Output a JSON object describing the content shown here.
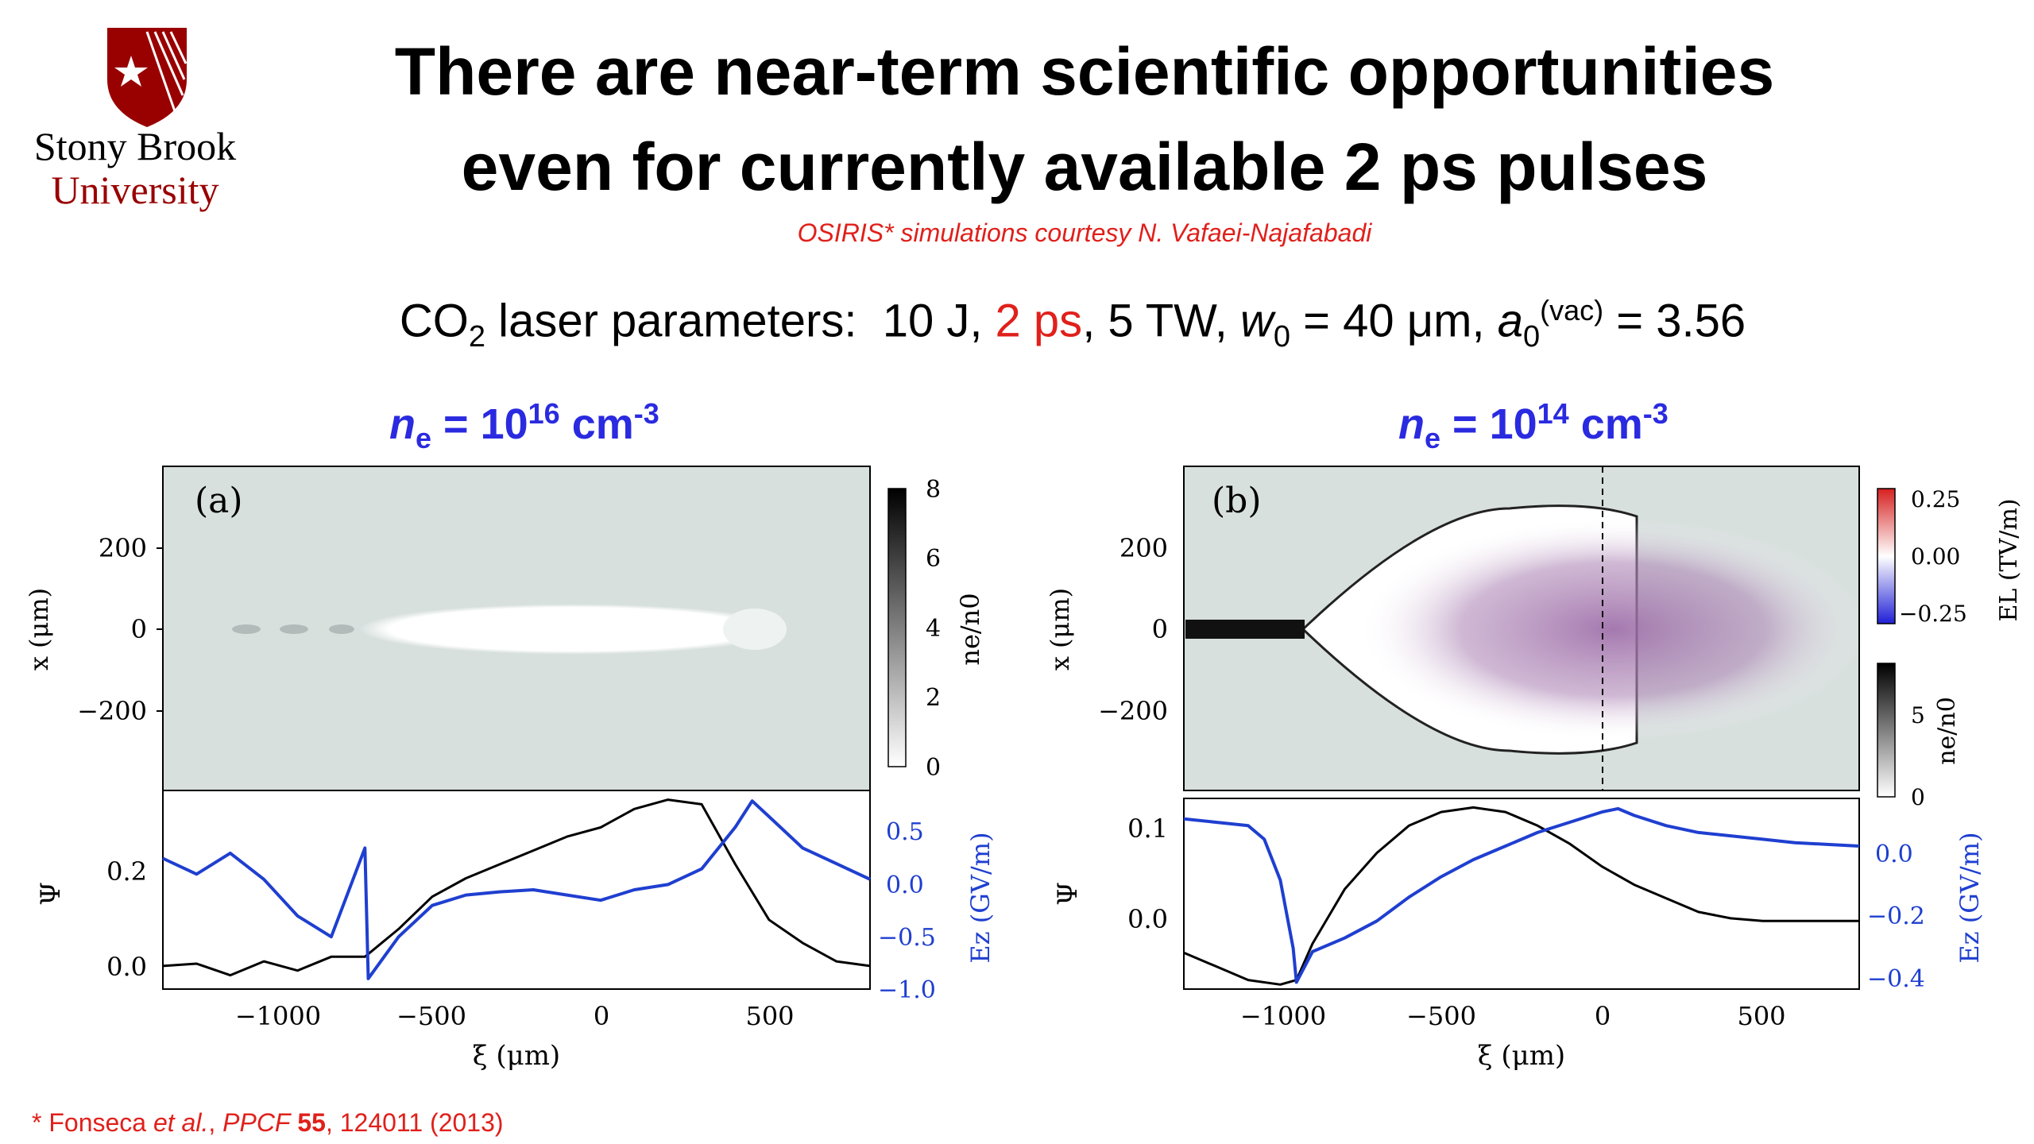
{
  "slide": {
    "title_line1": "There are near-term scientific opportunities",
    "title_line2": "even for currently available 2 ps pulses",
    "credit": "OSIRIS* simulations courtesy N. Vafaei-Najafabadi",
    "params": {
      "prefix": "CO",
      "co2_sub": "2",
      "text1": " laser parameters:  10 J, ",
      "pulse": "2 ps",
      "text2": ", 5 TW, ",
      "w_sym": "w",
      "w_sub": "0",
      "text3": " = 40 μm, ",
      "a_sym": "a",
      "a_sub": "0",
      "a_sup": "(vac)",
      "text4": " = 3.56"
    },
    "footnote": {
      "prefix": "* Fonseca ",
      "etal": "et al.",
      "comma": ", ",
      "journal": "PPCF",
      "volume": "55",
      "rest": ", 124011 (2013)"
    },
    "logo": {
      "line1": "Stony Brook",
      "line2": "University"
    }
  },
  "colors": {
    "accent_red": "#e0201b",
    "series_blue": "#1f3fd0",
    "density_blue": "#2a2ae0",
    "logo_red": "#990000"
  },
  "panel_a": {
    "density_label": {
      "n": "n",
      "sub": "e",
      "eq": " = 10",
      "exp": "16",
      "unit": " cm",
      "unit_exp": "-3"
    },
    "panel_label": "(a)",
    "top_ylabel": "x (μm)",
    "top_yticks": [
      "200",
      "0",
      "−200"
    ],
    "colorbar_label": "ne/n0",
    "colorbar_ticks": [
      "8",
      "6",
      "4",
      "2",
      "0"
    ],
    "bottom_ylabel": "Ψ",
    "bottom_yticks": [
      "0.2",
      "0.0"
    ],
    "right_ylabel": "Ez (GV/m)",
    "right_yticks": [
      "0.5",
      "0.0",
      "−0.5",
      "−1.0"
    ],
    "xlabel": "ξ (μm)",
    "xticks": [
      "−1000",
      "−500",
      "0",
      "500"
    ]
  },
  "panel_b": {
    "density_label": {
      "n": "n",
      "sub": "e",
      "eq": " = 10",
      "exp": "14",
      "unit": " cm",
      "unit_exp": "-3"
    },
    "panel_label": "(b)",
    "top_ylabel": "x (μm)",
    "top_yticks": [
      "200",
      "0",
      "−200"
    ],
    "colorbar1_label": "EL (TV/m)",
    "colorbar1_ticks": [
      "0.25",
      "0.00",
      "−0.25"
    ],
    "colorbar2_label": "ne/n0",
    "colorbar2_ticks": [
      "5",
      "0"
    ],
    "bottom_ylabel": "Ψ",
    "bottom_yticks": [
      "0.1",
      "0.0"
    ],
    "right_ylabel": "Ez (GV/m)",
    "right_yticks": [
      "0.0",
      "−0.2",
      "−0.4"
    ],
    "xlabel": "ξ (μm)",
    "xticks": [
      "−1000",
      "−500",
      "0",
      "500"
    ]
  },
  "chart_data": [
    {
      "type": "line",
      "title": "",
      "xlabel": "ξ (μm)",
      "ylabel": "Ψ",
      "y2label": "Ez (GV/m)",
      "xlim": [
        -1300,
        800
      ],
      "ylim": [
        -0.05,
        0.38
      ],
      "y2lim": [
        -1.05,
        0.85
      ],
      "series": [
        {
          "name": "Ψ",
          "axis": "left",
          "color": "#000000",
          "x": [
            -1300,
            -1200,
            -1100,
            -1000,
            -900,
            -800,
            -700,
            -600,
            -500,
            -400,
            -300,
            -200,
            -100,
            0,
            100,
            200,
            300,
            400,
            500,
            600,
            700,
            800
          ],
          "y": [
            0.0,
            0.005,
            -0.02,
            0.01,
            -0.01,
            0.02,
            0.02,
            0.08,
            0.15,
            0.19,
            0.22,
            0.25,
            0.28,
            0.3,
            0.34,
            0.36,
            0.35,
            0.22,
            0.1,
            0.05,
            0.01,
            0.0
          ]
        },
        {
          "name": "Ez",
          "axis": "right",
          "color": "#1f3fd0",
          "x": [
            -1300,
            -1200,
            -1100,
            -1000,
            -900,
            -800,
            -700,
            -690,
            -600,
            -500,
            -400,
            -300,
            -200,
            -100,
            0,
            100,
            200,
            300,
            400,
            450,
            500,
            600,
            700,
            800
          ],
          "y": [
            0.2,
            0.05,
            0.25,
            0.0,
            -0.35,
            -0.55,
            0.3,
            -0.95,
            -0.55,
            -0.25,
            -0.15,
            -0.12,
            -0.1,
            -0.15,
            -0.2,
            -0.1,
            -0.05,
            0.1,
            0.5,
            0.75,
            0.6,
            0.3,
            0.15,
            0.0
          ]
        }
      ]
    },
    {
      "type": "line",
      "title": "",
      "xlabel": "ξ (μm)",
      "ylabel": "Ψ",
      "y2label": "Ez (GV/m)",
      "xlim": [
        -1300,
        800
      ],
      "ylim": [
        -0.07,
        0.14
      ],
      "y2lim": [
        -0.42,
        0.14
      ],
      "series": [
        {
          "name": "Ψ",
          "axis": "left",
          "color": "#000000",
          "x": [
            -1300,
            -1200,
            -1100,
            -1000,
            -950,
            -900,
            -800,
            -700,
            -600,
            -500,
            -400,
            -300,
            -200,
            -100,
            0,
            100,
            200,
            300,
            400,
            500,
            600,
            700,
            800
          ],
          "y": [
            -0.03,
            -0.045,
            -0.06,
            -0.065,
            -0.06,
            -0.02,
            0.04,
            0.08,
            0.11,
            0.125,
            0.13,
            0.125,
            0.11,
            0.09,
            0.065,
            0.045,
            0.03,
            0.015,
            0.008,
            0.005,
            0.005,
            0.005,
            0.005
          ]
        },
        {
          "name": "Ez",
          "axis": "right",
          "color": "#1f3fd0",
          "x": [
            -1300,
            -1200,
            -1100,
            -1050,
            -1000,
            -960,
            -950,
            -900,
            -800,
            -700,
            -600,
            -500,
            -400,
            -300,
            -200,
            -100,
            0,
            50,
            100,
            200,
            300,
            400,
            500,
            600,
            700,
            800
          ],
          "y": [
            0.08,
            0.07,
            0.06,
            0.02,
            -0.1,
            -0.3,
            -0.4,
            -0.31,
            -0.27,
            -0.22,
            -0.15,
            -0.09,
            -0.04,
            0.0,
            0.04,
            0.07,
            0.1,
            0.11,
            0.09,
            0.06,
            0.04,
            0.03,
            0.02,
            0.01,
            0.005,
            0.0
          ]
        }
      ]
    }
  ]
}
